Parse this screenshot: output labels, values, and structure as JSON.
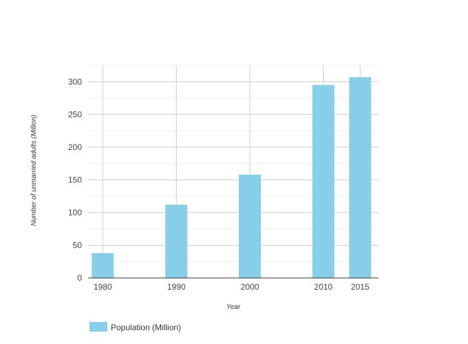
{
  "chart_data": {
    "type": "bar",
    "x": [
      1980,
      1990,
      2000,
      2010,
      2015
    ],
    "categories": [
      "1980",
      "1990",
      "2000",
      "2010",
      "2015"
    ],
    "series": [
      {
        "name": "Population (Million)",
        "values": [
          38,
          112,
          158,
          295,
          307
        ],
        "color": "#87ceeb"
      }
    ],
    "title": "",
    "xlabel": "Year",
    "ylabel": "Number of unmarried adults (Million)",
    "ylim": [
      0,
      325
    ],
    "xlim": [
      1978,
      2017.5
    ],
    "yticks": [
      0,
      50,
      100,
      150,
      200,
      250,
      300
    ],
    "xticks": [
      1980,
      1990,
      2000,
      2010,
      2015
    ],
    "grid": true,
    "legend_position": "bottom-left"
  }
}
